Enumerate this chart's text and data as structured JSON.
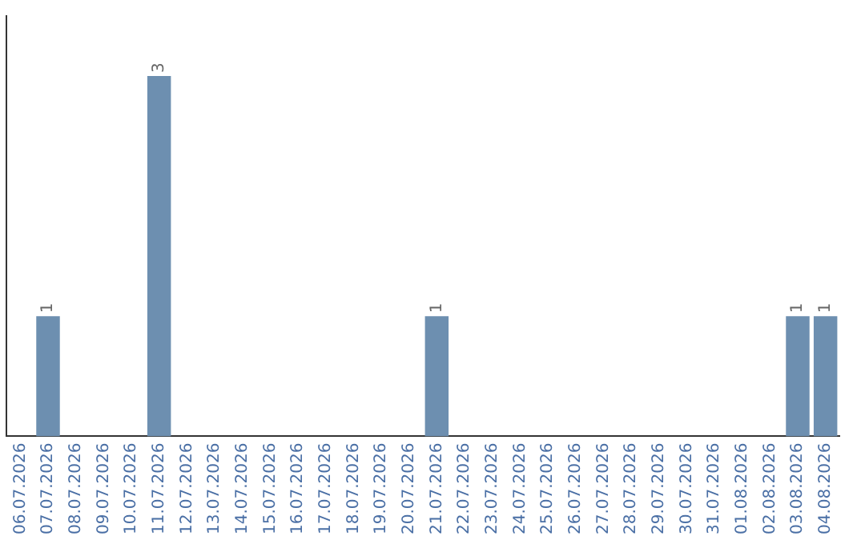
{
  "chart_data": {
    "type": "bar",
    "categories": [
      "06.07.2026",
      "07.07.2026",
      "08.07.2026",
      "09.07.2026",
      "10.07.2026",
      "11.07.2026",
      "12.07.2026",
      "13.07.2026",
      "14.07.2026",
      "15.07.2026",
      "16.07.2026",
      "17.07.2026",
      "18.07.2026",
      "19.07.2026",
      "20.07.2026",
      "21.07.2026",
      "22.07.2026",
      "23.07.2026",
      "24.07.2026",
      "25.07.2026",
      "26.07.2026",
      "27.07.2026",
      "28.07.2026",
      "29.07.2026",
      "30.07.2026",
      "31.07.2026",
      "01.08.2026",
      "02.08.2026",
      "03.08.2026",
      "04.08.2026"
    ],
    "values": [
      0,
      1,
      0,
      0,
      0,
      3,
      0,
      0,
      0,
      0,
      0,
      0,
      0,
      0,
      0,
      1,
      0,
      0,
      0,
      0,
      0,
      0,
      0,
      0,
      0,
      0,
      0,
      0,
      1,
      1
    ],
    "value_labels": [
      null,
      "1",
      null,
      null,
      null,
      "3",
      null,
      null,
      null,
      null,
      null,
      null,
      null,
      null,
      null,
      "1",
      null,
      null,
      null,
      null,
      null,
      null,
      null,
      null,
      null,
      null,
      null,
      null,
      "1",
      "1"
    ],
    "color": "#6d8fb0",
    "grid": false,
    "legend": false,
    "tick_labels": "x"
  }
}
